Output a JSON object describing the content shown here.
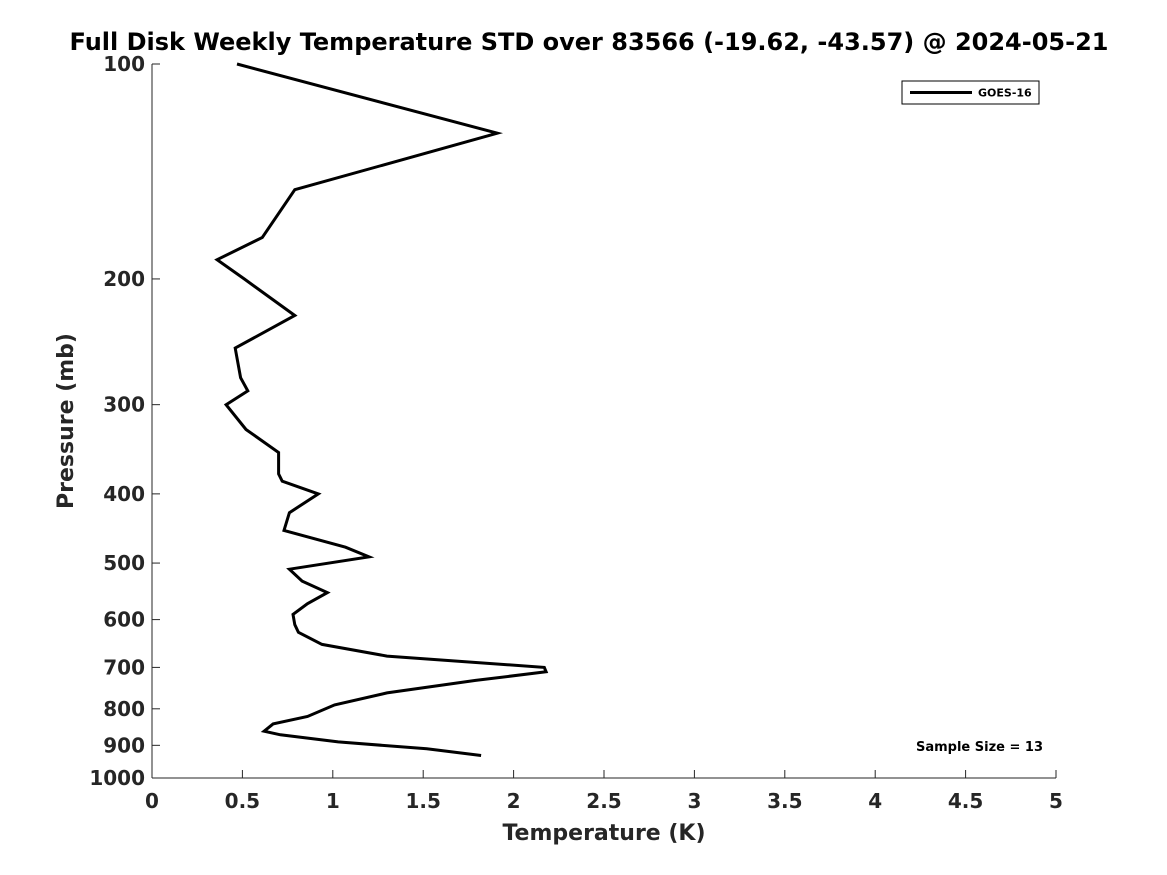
{
  "chart_data": {
    "type": "line",
    "title": "Full Disk Weekly Temperature STD over 83566 (-19.62, -43.57) @ 2024-05-21",
    "xlabel": "Temperature (K)",
    "ylabel": "Pressure (mb)",
    "xlim": [
      0,
      5
    ],
    "ylim": [
      100,
      1000
    ],
    "yscale": "log",
    "y_reversed": true,
    "x_ticks": [
      "0",
      "0.5",
      "1",
      "1.5",
      "2",
      "2.5",
      "3",
      "3.5",
      "4",
      "4.5",
      "5"
    ],
    "y_ticks": [
      "100",
      "200",
      "300",
      "400",
      "500",
      "600",
      "700",
      "800",
      "900",
      "1000"
    ],
    "grid": false,
    "legend_position": "top-right",
    "series": [
      {
        "name": "GOES-16",
        "color": "#000000",
        "x": [
          0.47,
          1.91,
          0.79,
          0.61,
          0.36,
          0.51,
          0.79,
          0.46,
          0.49,
          0.53,
          0.41,
          0.52,
          0.7,
          0.7,
          0.72,
          0.92,
          0.76,
          0.73,
          1.07,
          1.2,
          0.76,
          0.83,
          0.97,
          0.86,
          0.78,
          0.79,
          0.81,
          0.94,
          1.3,
          2.17,
          2.18,
          1.79,
          1.3,
          1.01,
          0.86,
          0.67,
          0.62,
          0.71,
          1.03,
          1.52,
          1.82
        ],
        "y": [
          100,
          125,
          150,
          175,
          188,
          200,
          225,
          250,
          275,
          287,
          300,
          325,
          350,
          375,
          384,
          400,
          425,
          450,
          475,
          490,
          510,
          530,
          550,
          570,
          590,
          610,
          625,
          650,
          675,
          700,
          710,
          730,
          760,
          790,
          820,
          840,
          860,
          870,
          890,
          910,
          930
        ]
      }
    ],
    "annotations": [
      "Sample Size = 13"
    ]
  }
}
